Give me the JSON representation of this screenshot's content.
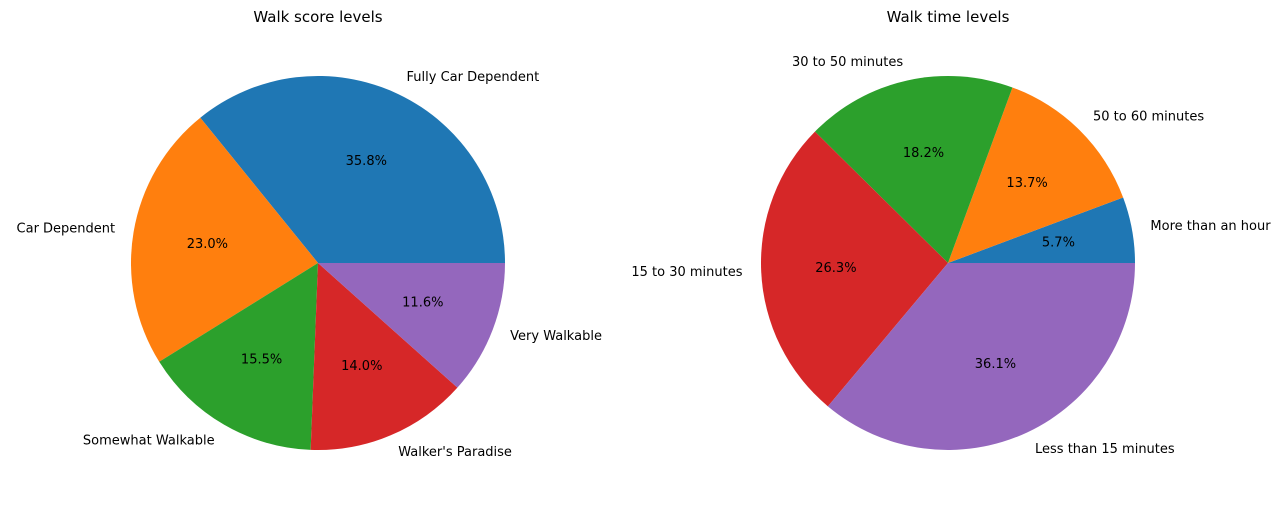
{
  "chart_data": [
    {
      "type": "pie",
      "title": "Walk score levels",
      "categories": [
        "Fully Car Dependent",
        "Car Dependent",
        "Somewhat Walkable",
        "Walker's Paradise",
        "Very Walkable"
      ],
      "values": [
        35.8,
        23.0,
        15.5,
        14.0,
        11.6
      ],
      "value_labels": [
        "35.8%",
        "23.0%",
        "15.5%",
        "14.0%",
        "11.6%"
      ],
      "colors": [
        "#1f77b4",
        "#ff7f0e",
        "#2ca02c",
        "#d62728",
        "#9467bd"
      ]
    },
    {
      "type": "pie",
      "title": "Walk time levels",
      "categories": [
        "More than an hour",
        "50 to 60 minutes",
        "30 to 50 minutes",
        "15 to 30 minutes",
        "Less than 15 minutes"
      ],
      "values": [
        5.7,
        13.7,
        18.2,
        26.3,
        36.1
      ],
      "value_labels": [
        "5.7%",
        "13.7%",
        "18.2%",
        "26.3%",
        "36.1%"
      ],
      "colors": [
        "#1f77b4",
        "#ff7f0e",
        "#2ca02c",
        "#d62728",
        "#9467bd"
      ]
    }
  ]
}
